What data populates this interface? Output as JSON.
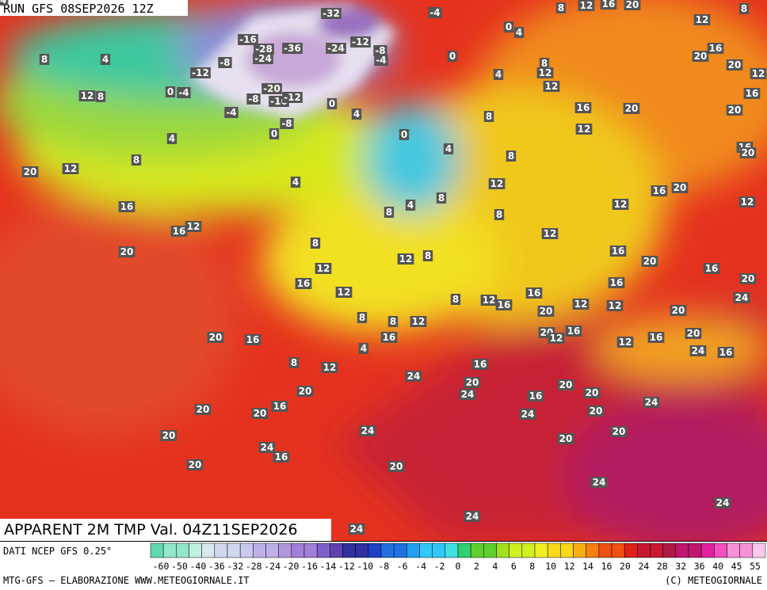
{
  "header": {
    "run": "RUN GFS 08SEP2026 12Z"
  },
  "map": {
    "field_title": "APPARENT 2M TMP Val. 04Z11SEP2026",
    "labels": [
      -32,
      -4,
      8,
      12,
      16,
      20,
      8,
      12,
      0,
      4,
      -16,
      -28,
      -36,
      -24,
      -12,
      -8,
      -4,
      -24,
      -8,
      0,
      8,
      16,
      20,
      20,
      12,
      8,
      4,
      -12,
      12,
      4,
      12,
      0,
      -4,
      -20,
      -8,
      -16,
      -12,
      12,
      8,
      16,
      0,
      -4,
      16,
      20,
      20,
      4,
      8,
      -8,
      12,
      0,
      0,
      4,
      4,
      16,
      20,
      8,
      8,
      20,
      12,
      4,
      12,
      16,
      20,
      8,
      4,
      8,
      12,
      12,
      16,
      8,
      12,
      16,
      12,
      8,
      16,
      20,
      20,
      12,
      8,
      12,
      16,
      20,
      16,
      16,
      16,
      12,
      8,
      12,
      16,
      12,
      12,
      20,
      24,
      20,
      8,
      8,
      12,
      16,
      20,
      12,
      20,
      16,
      20,
      16,
      16,
      12,
      4,
      24,
      16,
      8,
      12,
      16,
      24,
      20,
      20,
      20,
      24,
      16,
      20,
      16,
      20,
      20,
      20,
      24,
      24,
      24,
      20,
      20,
      20,
      24,
      16,
      20,
      20,
      24,
      24,
      24,
      24,
      24
    ]
  },
  "footer": {
    "source": "DATI NCEP GFS 0.25°",
    "credit": "MTG-GFS — ELABORAZIONE WWW.METEOGIORNALE.IT",
    "copyright": "(C) METEOGIORNALE",
    "colorbar_ticks": [
      -60,
      -50,
      -40,
      -36,
      -32,
      -28,
      -24,
      -20,
      -16,
      -14,
      -12,
      -10,
      -8,
      -6,
      -4,
      -2,
      0,
      2,
      4,
      6,
      8,
      10,
      12,
      14,
      16,
      20,
      24,
      28,
      32,
      36,
      40,
      45,
      55
    ]
  }
}
